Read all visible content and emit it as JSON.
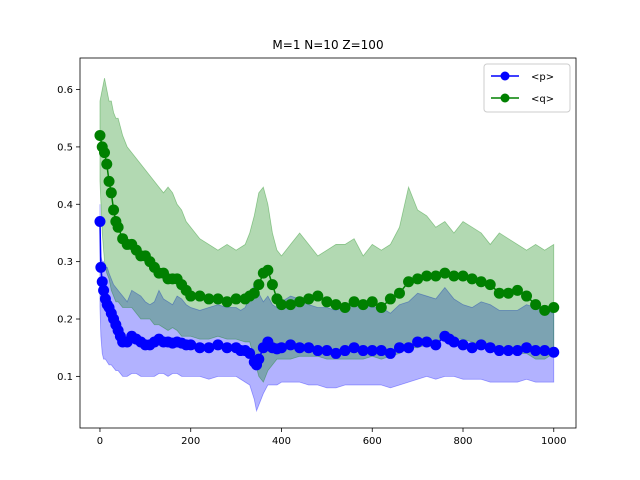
{
  "chart_data": {
    "type": "line",
    "title": "M=1 N=10 Z=100",
    "xlabel": "",
    "ylabel": "",
    "xlim": [
      -44,
      1049
    ],
    "ylim": [
      0.01,
      0.655
    ],
    "xticks": [
      0,
      200,
      400,
      600,
      800,
      1000
    ],
    "xtick_labels": [
      "0",
      "200",
      "400",
      "600",
      "800",
      "1000"
    ],
    "yticks": [
      0.1,
      0.2,
      0.3,
      0.4,
      0.5,
      0.6
    ],
    "ytick_labels": [
      "0.1",
      "0.2",
      "0.3",
      "0.4",
      "0.5",
      "0.6"
    ],
    "grid": false,
    "legend_position": "top-right",
    "series": [
      {
        "name": "<p>",
        "color": "#0000ff",
        "band_color": "#0000ff",
        "marker": "circle",
        "x": [
          0,
          2,
          5,
          8,
          12,
          16,
          20,
          25,
          30,
          35,
          40,
          45,
          50,
          60,
          70,
          80,
          90,
          100,
          110,
          120,
          130,
          140,
          150,
          160,
          170,
          180,
          190,
          200,
          220,
          240,
          260,
          280,
          300,
          310,
          320,
          330,
          340,
          345,
          350,
          360,
          370,
          380,
          390,
          400,
          420,
          440,
          460,
          480,
          500,
          520,
          540,
          560,
          580,
          600,
          620,
          640,
          660,
          680,
          700,
          720,
          740,
          760,
          770,
          780,
          800,
          820,
          840,
          860,
          880,
          900,
          920,
          940,
          960,
          980,
          1000
        ],
        "mean": [
          0.37,
          0.29,
          0.265,
          0.25,
          0.235,
          0.225,
          0.22,
          0.21,
          0.2,
          0.19,
          0.18,
          0.17,
          0.16,
          0.16,
          0.17,
          0.165,
          0.16,
          0.155,
          0.155,
          0.16,
          0.165,
          0.16,
          0.16,
          0.158,
          0.16,
          0.158,
          0.155,
          0.155,
          0.15,
          0.15,
          0.155,
          0.15,
          0.15,
          0.145,
          0.145,
          0.14,
          0.125,
          0.12,
          0.13,
          0.15,
          0.16,
          0.15,
          0.148,
          0.15,
          0.155,
          0.15,
          0.15,
          0.145,
          0.145,
          0.14,
          0.145,
          0.15,
          0.145,
          0.145,
          0.145,
          0.14,
          0.15,
          0.15,
          0.16,
          0.16,
          0.155,
          0.17,
          0.165,
          0.16,
          0.155,
          0.15,
          0.155,
          0.15,
          0.145,
          0.145,
          0.145,
          0.15,
          0.145,
          0.145,
          0.142
        ],
        "lower": [
          0.22,
          0.17,
          0.14,
          0.13,
          0.13,
          0.125,
          0.12,
          0.12,
          0.115,
          0.11,
          0.11,
          0.105,
          0.1,
          0.1,
          0.105,
          0.105,
          0.1,
          0.1,
          0.1,
          0.1,
          0.105,
          0.105,
          0.1,
          0.105,
          0.105,
          0.1,
          0.1,
          0.1,
          0.1,
          0.095,
          0.1,
          0.1,
          0.1,
          0.095,
          0.09,
          0.085,
          0.06,
          0.04,
          0.05,
          0.07,
          0.085,
          0.085,
          0.085,
          0.09,
          0.09,
          0.09,
          0.085,
          0.085,
          0.08,
          0.08,
          0.085,
          0.085,
          0.085,
          0.085,
          0.085,
          0.08,
          0.085,
          0.09,
          0.095,
          0.1,
          0.095,
          0.1,
          0.1,
          0.1,
          0.095,
          0.095,
          0.095,
          0.09,
          0.09,
          0.09,
          0.09,
          0.095,
          0.09,
          0.09,
          0.09
        ],
        "upper": [
          0.4,
          0.31,
          0.3,
          0.3,
          0.29,
          0.29,
          0.28,
          0.27,
          0.26,
          0.255,
          0.25,
          0.245,
          0.24,
          0.23,
          0.25,
          0.245,
          0.24,
          0.23,
          0.225,
          0.23,
          0.25,
          0.235,
          0.23,
          0.225,
          0.24,
          0.235,
          0.225,
          0.22,
          0.215,
          0.22,
          0.225,
          0.22,
          0.22,
          0.215,
          0.22,
          0.24,
          0.26,
          0.265,
          0.245,
          0.23,
          0.24,
          0.225,
          0.22,
          0.23,
          0.24,
          0.235,
          0.225,
          0.22,
          0.22,
          0.215,
          0.225,
          0.23,
          0.225,
          0.22,
          0.22,
          0.21,
          0.225,
          0.23,
          0.245,
          0.24,
          0.235,
          0.255,
          0.245,
          0.235,
          0.225,
          0.22,
          0.23,
          0.225,
          0.215,
          0.215,
          0.215,
          0.225,
          0.22,
          0.215,
          0.21
        ]
      },
      {
        "name": "<q>",
        "color": "#008000",
        "band_color": "#008000",
        "marker": "circle",
        "x": [
          0,
          5,
          10,
          15,
          20,
          25,
          30,
          35,
          40,
          50,
          60,
          70,
          80,
          90,
          100,
          110,
          120,
          130,
          140,
          150,
          160,
          170,
          180,
          190,
          200,
          220,
          240,
          260,
          280,
          300,
          320,
          330,
          340,
          350,
          360,
          370,
          380,
          390,
          400,
          420,
          440,
          460,
          480,
          500,
          520,
          540,
          560,
          580,
          600,
          620,
          640,
          660,
          680,
          700,
          720,
          740,
          760,
          780,
          800,
          820,
          840,
          860,
          880,
          900,
          920,
          940,
          960,
          980,
          1000
        ],
        "mean": [
          0.52,
          0.5,
          0.49,
          0.47,
          0.44,
          0.42,
          0.39,
          0.37,
          0.36,
          0.34,
          0.33,
          0.33,
          0.32,
          0.31,
          0.31,
          0.3,
          0.29,
          0.28,
          0.28,
          0.27,
          0.27,
          0.27,
          0.26,
          0.25,
          0.24,
          0.24,
          0.235,
          0.235,
          0.23,
          0.235,
          0.235,
          0.24,
          0.245,
          0.26,
          0.28,
          0.285,
          0.26,
          0.235,
          0.225,
          0.225,
          0.23,
          0.235,
          0.24,
          0.23,
          0.225,
          0.22,
          0.23,
          0.225,
          0.23,
          0.22,
          0.235,
          0.245,
          0.265,
          0.27,
          0.275,
          0.275,
          0.28,
          0.275,
          0.275,
          0.27,
          0.265,
          0.26,
          0.245,
          0.245,
          0.25,
          0.24,
          0.225,
          0.215,
          0.22
        ],
        "lower": [
          0.44,
          0.35,
          0.3,
          0.28,
          0.27,
          0.25,
          0.24,
          0.23,
          0.23,
          0.22,
          0.22,
          0.22,
          0.21,
          0.2,
          0.2,
          0.2,
          0.19,
          0.19,
          0.185,
          0.18,
          0.185,
          0.18,
          0.17,
          0.17,
          0.17,
          0.165,
          0.165,
          0.17,
          0.165,
          0.165,
          0.16,
          0.16,
          0.13,
          0.1,
          0.09,
          0.11,
          0.12,
          0.13,
          0.13,
          0.13,
          0.135,
          0.135,
          0.135,
          0.13,
          0.13,
          0.13,
          0.13,
          0.13,
          0.135,
          0.13,
          0.135,
          0.14,
          0.15,
          0.15,
          0.155,
          0.16,
          0.17,
          0.165,
          0.165,
          0.16,
          0.155,
          0.15,
          0.145,
          0.14,
          0.14,
          0.14,
          0.13,
          0.13,
          0.14
        ],
        "upper": [
          0.58,
          0.6,
          0.62,
          0.6,
          0.58,
          0.58,
          0.56,
          0.55,
          0.55,
          0.52,
          0.5,
          0.49,
          0.48,
          0.47,
          0.46,
          0.45,
          0.44,
          0.43,
          0.42,
          0.43,
          0.42,
          0.4,
          0.39,
          0.37,
          0.36,
          0.34,
          0.33,
          0.32,
          0.33,
          0.32,
          0.33,
          0.35,
          0.38,
          0.42,
          0.43,
          0.4,
          0.35,
          0.32,
          0.31,
          0.33,
          0.35,
          0.33,
          0.31,
          0.32,
          0.33,
          0.33,
          0.34,
          0.31,
          0.33,
          0.32,
          0.33,
          0.36,
          0.43,
          0.39,
          0.38,
          0.36,
          0.37,
          0.35,
          0.37,
          0.36,
          0.35,
          0.33,
          0.35,
          0.34,
          0.33,
          0.32,
          0.33,
          0.32,
          0.33
        ]
      }
    ]
  }
}
